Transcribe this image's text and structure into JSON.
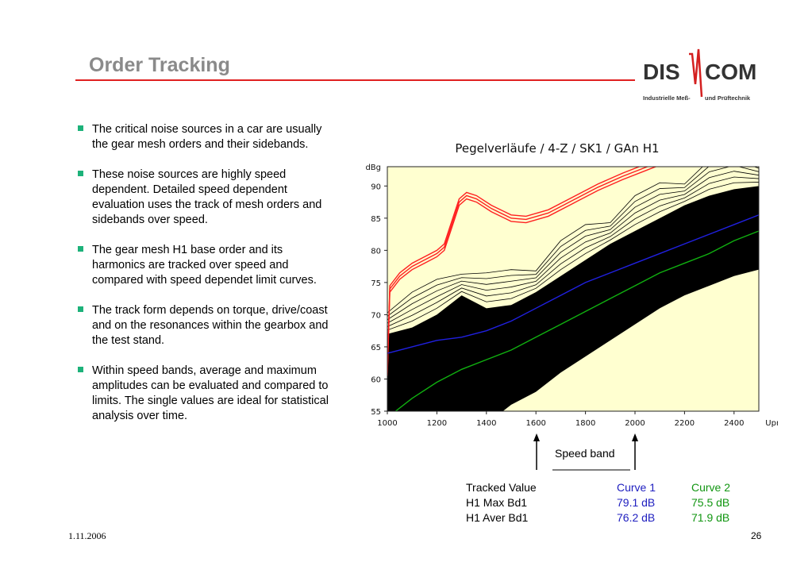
{
  "slide": {
    "title": "Order Tracking",
    "date": "1.11.2006",
    "page_number": "26"
  },
  "logo": {
    "left_text": "DIS",
    "right_text": "COM",
    "subtitle_left": "Industrielle Meß-",
    "subtitle_right": "und Prüftechnik",
    "color": "#333333",
    "accent": "#d42020"
  },
  "bullets": [
    "The critical noise sources in a car are usually the gear mesh orders and their sidebands.",
    "These noise sources are highly speed dependent. Detailed speed dependent evaluation uses the track of mesh orders and sidebands over speed.",
    "The gear mesh H1 base order and its harmonics are tracked over speed and compared with speed dependet limit curves.",
    "The track form depends on torque, drive/coast and on the resonances within the gearbox and the test stand.",
    "Within speed bands, average and maximum amplitudes can be evaluated and compared to limits. The single values are ideal for statistical analysis over time."
  ],
  "chart_data": {
    "type": "line",
    "title": "Pegelverläufe / 4-Z / SK1 / GAn H1",
    "ylabel": "dBg",
    "xlabel": "Upm",
    "x_ticks": [
      1000,
      1200,
      1400,
      1600,
      1800,
      2000,
      2200,
      2400
    ],
    "y_ticks": [
      55,
      60,
      65,
      70,
      75,
      80,
      85,
      90
    ],
    "xlim": [
      1000,
      2500
    ],
    "ylim": [
      55,
      93
    ],
    "background": "#ffffd0",
    "series": [
      {
        "name": "",
        "color": "#ff2020",
        "x": [
          1000,
          1010,
          1050,
          1100,
          1150,
          1200,
          1230,
          1260,
          1290,
          1320,
          1360,
          1420,
          1500,
          1560,
          1650,
          1750,
          1850,
          1950,
          2050,
          2150,
          2200
        ],
        "y": [
          61,
          74,
          76,
          77.5,
          78.5,
          79.5,
          80.5,
          84,
          87.5,
          88.5,
          88,
          86.5,
          85,
          84.8,
          85.8,
          87.8,
          89.8,
          91.5,
          93,
          94.5,
          95.5
        ]
      },
      {
        "name": "",
        "color": "#2020e0",
        "x": [
          1000,
          1100,
          1200,
          1300,
          1400,
          1500,
          1600,
          1700,
          1800,
          1900,
          2000,
          2100,
          2200,
          2300,
          2400,
          2500
        ],
        "y": [
          64,
          65,
          66,
          66.5,
          67.5,
          69,
          71,
          73,
          75,
          76.5,
          78,
          79.5,
          81,
          82.5,
          84,
          85.5
        ]
      },
      {
        "name": "",
        "color": "#10b010",
        "x": [
          1000,
          1100,
          1200,
          1300,
          1400,
          1500,
          1600,
          1700,
          1800,
          1900,
          2000,
          2100,
          2200,
          2300,
          2400,
          2500
        ],
        "y": [
          54,
          57,
          59.5,
          61.5,
          63,
          64.5,
          66.5,
          68.5,
          70.5,
          72.5,
          74.5,
          76.5,
          78,
          79.5,
          81.5,
          83
        ]
      }
    ],
    "band": {
      "color": "#000000",
      "x": [
        1000,
        1100,
        1200,
        1300,
        1400,
        1500,
        1600,
        1700,
        1800,
        1900,
        2000,
        2100,
        2200,
        2300,
        2400,
        2500
      ],
      "upper": [
        67,
        68,
        70,
        73,
        71,
        71.5,
        73.5,
        76,
        78.5,
        81,
        83,
        85,
        87,
        88.5,
        89.5,
        90
      ],
      "lower": [
        53,
        53,
        53,
        53,
        53,
        56,
        58,
        61,
        63.5,
        66,
        68.5,
        71,
        73,
        74.5,
        76,
        77
      ]
    }
  },
  "speed_band": {
    "label": "Speed band",
    "from_rpm": 1600,
    "to_rpm": 2000
  },
  "table": {
    "header": [
      "Tracked Value",
      "Curve 1",
      "Curve 2"
    ],
    "rows": [
      [
        "H1 Max Bd1",
        "79.1 dB",
        "75.5 dB"
      ],
      [
        "H1 Aver Bd1",
        "76.2 dB",
        "71.9 dB"
      ]
    ]
  }
}
